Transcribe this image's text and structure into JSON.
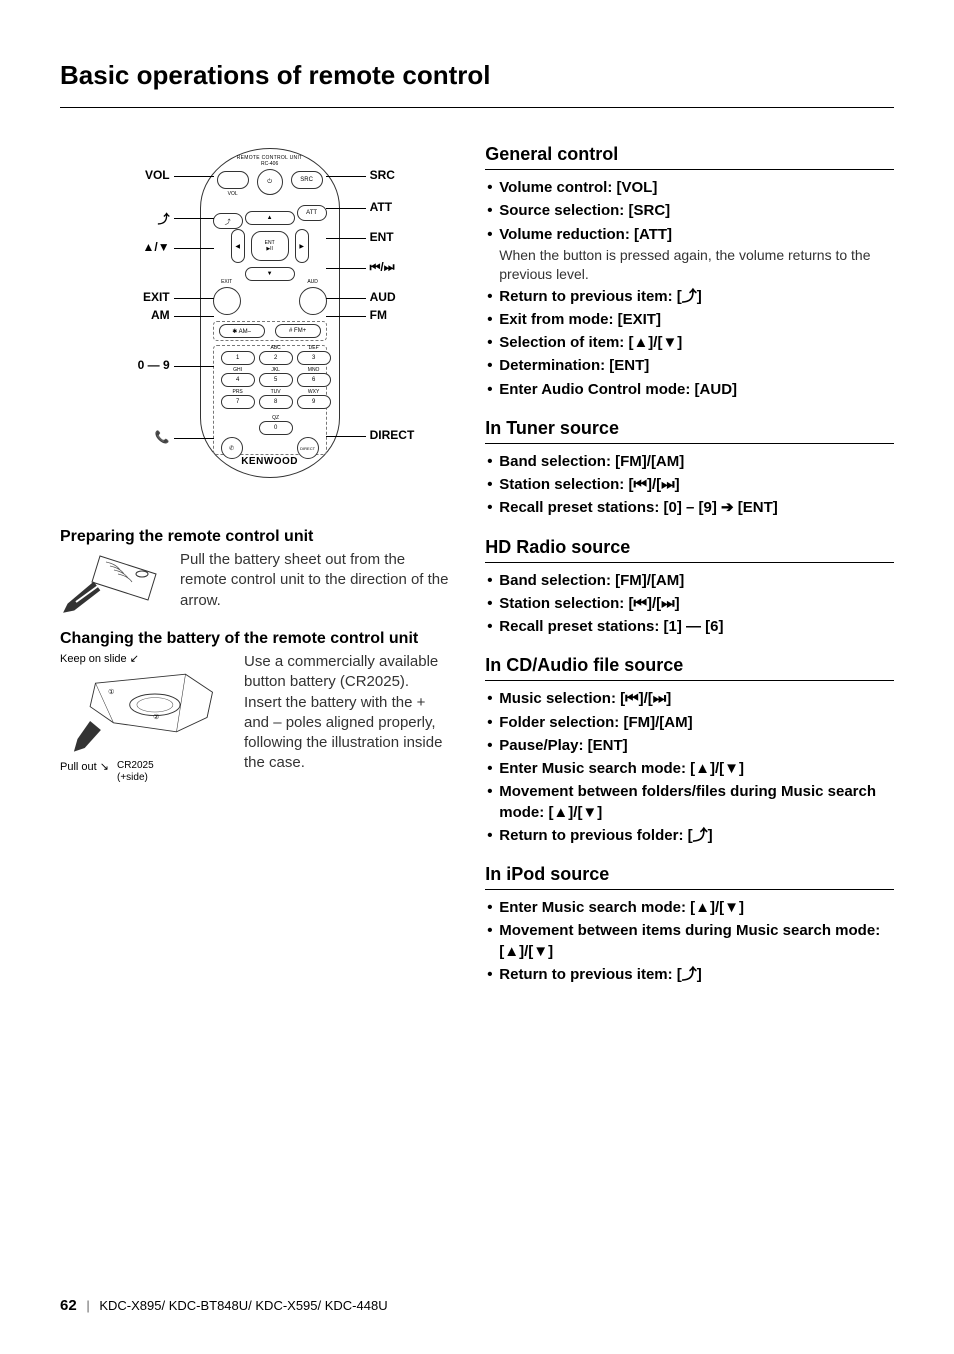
{
  "page": {
    "title": "Basic operations of remote control",
    "footer_page": "62",
    "footer_models": "KDC-X895/ KDC-BT848U/ KDC-X595/ KDC-448U"
  },
  "remote": {
    "unit_label_1": "REMOTE CONTROL UNIT",
    "unit_label_2": "RC-406",
    "bottom_brand": "KENWOOD",
    "left_labels": [
      "VOL",
      "⤴",
      "▲/▼",
      "EXIT",
      "AM",
      "0 — 9",
      "📞"
    ],
    "right_labels": [
      "SRC",
      "ATT",
      "ENT",
      "⏮/⏭",
      "AUD",
      "FM",
      "DIRECT"
    ],
    "left_positions": [
      38,
      80,
      110,
      160,
      178,
      228,
      300
    ],
    "right_positions": [
      38,
      70,
      100,
      130,
      160,
      178,
      298
    ],
    "btn_small_labels": {
      "vol": "VOL",
      "src": "SRC",
      "att": "ATT",
      "exit": "EXIT",
      "aud": "AUD",
      "ent": "ENT",
      "am": "✱ AM–",
      "fm": "# FM+"
    },
    "keypad": {
      "nums": [
        "1",
        "2",
        "3",
        "4",
        "5",
        "6",
        "7",
        "8",
        "9",
        "0"
      ],
      "subs": [
        "",
        "ABC",
        "DEF",
        "GHI",
        "JKL",
        "MNO",
        "PRS",
        "TUV",
        "WXY",
        "QZ"
      ]
    }
  },
  "left": {
    "prep_heading": "Preparing the remote control unit",
    "prep_text": "Pull the battery sheet out from the remote control unit to the direction of the arrow.",
    "batt_heading": "Changing the battery of the remote control unit",
    "batt_keep": "Keep on slide",
    "batt_pull": "Pull out",
    "batt_model": "CR2025",
    "batt_side": "(+side)",
    "batt_text": "Use a commercially available button battery (CR2025). Insert the battery with the + and – poles aligned properly, following the illustration inside the case."
  },
  "sections": [
    {
      "heading": "General control",
      "items": [
        {
          "label": "Volume control:",
          "key": "[VOL]"
        },
        {
          "label": "Source selection:",
          "key": "[SRC]"
        },
        {
          "label": "Volume reduction:",
          "key": "[ATT]",
          "note": "When the button is pressed again, the volume returns to the previous level."
        },
        {
          "label": "Return to previous item:",
          "key": "[⤴]",
          "key_is_sym": true
        },
        {
          "label": "Exit from mode:",
          "key": "[EXIT]"
        },
        {
          "label": "Selection of item:",
          "key": "[▲]/[▼]",
          "key_is_sym": true
        },
        {
          "label": "Determination:",
          "key": "[ENT]"
        },
        {
          "label": "Enter Audio Control mode:",
          "key": "[AUD]"
        }
      ]
    },
    {
      "heading": "In Tuner source",
      "items": [
        {
          "label": "Band selection:",
          "key": "[FM]/[AM]"
        },
        {
          "label": "Station selection:",
          "key": "[⏮]/[⏭]",
          "key_is_sym": true
        },
        {
          "label": "Recall preset stations:",
          "key": "[0] – [9] ➔ [ENT]"
        }
      ]
    },
    {
      "heading": "HD Radio source",
      "items": [
        {
          "label": "Band selection:",
          "key": "[FM]/[AM]"
        },
        {
          "label": "Station selection:",
          "key": "[⏮]/[⏭]",
          "key_is_sym": true
        },
        {
          "label": "Recall preset stations:",
          "key": "[1] — [6]"
        }
      ]
    },
    {
      "heading": "In CD/Audio file source",
      "items": [
        {
          "label": "Music selection:",
          "key": "[⏮]/[⏭]",
          "key_is_sym": true
        },
        {
          "label": "Folder selection:",
          "key": "[FM]/[AM]"
        },
        {
          "label": "Pause/Play:",
          "key": "[ENT]"
        },
        {
          "label": "Enter Music search mode:",
          "key": "[▲]/[▼]",
          "key_is_sym": true
        },
        {
          "label": "Movement between folders/files during Music search mode:",
          "key": "[▲]/[▼]",
          "key_is_sym": true
        },
        {
          "label": "Return to previous folder:",
          "key": "[⤴]",
          "key_is_sym": true
        }
      ]
    },
    {
      "heading": "In iPod source",
      "items": [
        {
          "label": "Enter Music search mode:",
          "key": "[▲]/[▼]",
          "key_is_sym": true
        },
        {
          "label": "Movement between items during Music search mode:",
          "key": "[▲]/[▼]",
          "key_is_sym": true
        },
        {
          "label": "Return to previous item:",
          "key": "[⤴]",
          "key_is_sym": true
        }
      ]
    }
  ]
}
